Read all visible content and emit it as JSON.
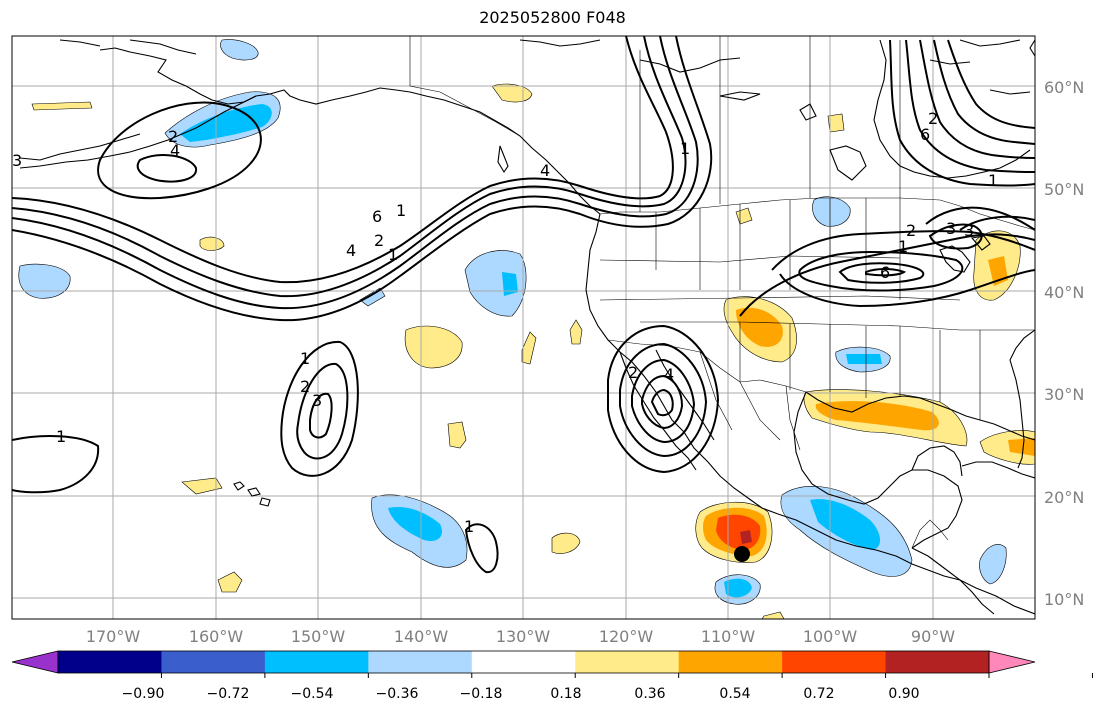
{
  "title": "2025052800 F048",
  "colors": {
    "grid": "#a8a8a8",
    "coast": "#000000",
    "contour": "#000000",
    "lat_label": "#808080"
  },
  "latitude_labels": [
    "60°N",
    "50°N",
    "40°N",
    "30°N",
    "20°N",
    "10°N"
  ],
  "longitude_labels": [
    "170°W",
    "160°W",
    "150°W",
    "140°W",
    "130°W",
    "120°W",
    "110°W",
    "100°W",
    "90°W"
  ],
  "contour_labels": [
    "1",
    "2",
    "4",
    "6",
    "1",
    "2",
    "3",
    "4",
    "1",
    "1",
    "2",
    "3",
    "4",
    "1",
    "2",
    "4",
    "6",
    "1",
    "2",
    "3",
    "6",
    "1",
    "1",
    "2",
    "3"
  ],
  "colorbar": {
    "colors": [
      "#9932cc",
      "#00008b",
      "#3a5fcd",
      "#00bfff",
      "#add8ff",
      "#ffffff",
      "#ffeb8a",
      "#ffa500",
      "#ff4500",
      "#b22222",
      "#ff88bb"
    ],
    "tick_labels": [
      "−0.90",
      "−0.72",
      "−0.54",
      "−0.36",
      "−0.18",
      "0.18",
      "0.36",
      "0.54",
      "0.72",
      "0.90"
    ]
  },
  "marker": "storm-center-dot"
}
